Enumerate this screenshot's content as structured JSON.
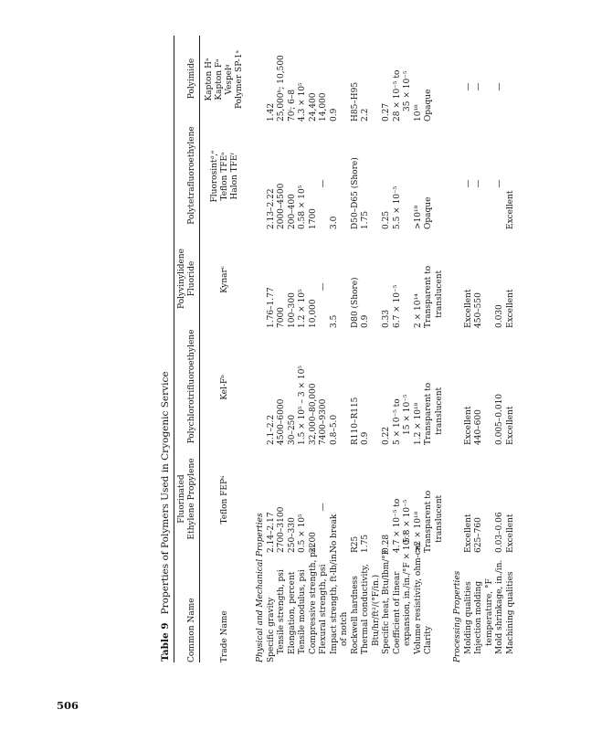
{
  "page": {
    "number": "506"
  },
  "table": {
    "title_label": "Table 9",
    "title": "Properties of Polymers Used in Cryogenic Service",
    "row_header": "Common Name",
    "trade_row_label": "Trade Name",
    "columns": [
      {
        "header_lines": [
          "Fluorinated",
          "Ethylene Propylene"
        ],
        "trade_lines": [
          "Teflon FEPᵃ"
        ]
      },
      {
        "header_lines": [
          "Polychlorotrifluoroethylene"
        ],
        "trade_lines": [
          "Kel-Fᵇ"
        ]
      },
      {
        "header_lines": [
          "Polyvinylidene",
          "Fluoride"
        ],
        "trade_lines": [
          "Kynarᶜ"
        ]
      },
      {
        "header_lines": [
          "Polytetrafluoroethylene"
        ],
        "trade_lines": [
          "Fluorosintᵈ,ᵉ",
          "Teflon TFEᵃ",
          "Halon TFEᶠ"
        ]
      },
      {
        "header_lines": [
          "Polyimide"
        ],
        "trade_lines": [
          "Kapton Hᵃ",
          "Kapton Fᵃ",
          "Vespelᵍ",
          "Polymer SP-1ᵃ"
        ]
      }
    ],
    "sections": [
      {
        "heading": "Physical and Mechanical Properties",
        "rows": [
          {
            "label_lines": [
              "Specific gravity"
            ],
            "indent": 0,
            "values": [
              "2.14–2.17",
              "2.1–2.2",
              "1.76–1.77",
              "2.13–2.22",
              "1.42"
            ]
          },
          {
            "label_lines": [
              "Tensile strength, psi"
            ],
            "indent": 1,
            "values": [
              "2700–3100",
              "4500–6000",
              "7000",
              "2000–4500",
              "25,000ʰ; 10,500"
            ]
          },
          {
            "label_lines": [
              "Elongation, percent"
            ],
            "indent": 1,
            "values": [
              "250–330",
              "30–250",
              "100–300",
              "200–400",
              "70ⁱ; 6–8"
            ]
          },
          {
            "label_lines": [
              "Tensile modulus, psi"
            ],
            "indent": 1,
            "values": [
              "0.5 × 10⁵",
              "1.5 × 10⁵ – 3 × 10⁵",
              "1.2 × 10⁵",
              "0.58 × 10⁵",
              "4.3 × 10⁵"
            ]
          },
          {
            "label_lines": [
              "Compressive strength, psi"
            ],
            "indent": 1,
            "values": [
              "2200",
              "32,000–80,000",
              "10,000",
              "1700",
              "24,400"
            ]
          },
          {
            "label_lines": [
              "Flexural strength, psi"
            ],
            "indent": 1,
            "values": [
              "—",
              "7400–9300",
              "—",
              "—",
              "14,000"
            ]
          },
          {
            "label_lines": [
              "Impact strength, ft-lb/in.",
              "of notch"
            ],
            "indent": 1,
            "values": [
              "No break",
              "0.8–5.0",
              "3.5",
              "3.0",
              "0.9"
            ]
          },
          {
            "label_lines": [
              "Rockwell hardness"
            ],
            "indent": 1,
            "values": [
              "R25",
              "R110–R115",
              "D80 (Shore)",
              "D50–D65 (Shore)",
              "H85–H95"
            ]
          },
          {
            "label_lines": [
              "Thermal conductivity,",
              "Btu/hr/ft²/(°F/in.)"
            ],
            "indent": 1,
            "values": [
              "1.75",
              "0.9",
              "0.9",
              "1.75",
              "2.2"
            ]
          },
          {
            "label_lines": [
              "Specific heat, Btu/lbm/°F"
            ],
            "indent": 1,
            "values": [
              "0.28",
              "0.22",
              "0.33",
              "0.25",
              "0.27"
            ]
          },
          {
            "label_lines": [
              "Coefficient of linear",
              "expansion, in./in./°F × 10⁻⁵"
            ],
            "indent": 1,
            "values": [
              [
                "4.7 × 10⁻⁵ to",
                "5.8 × 10⁻⁵"
              ],
              [
                "5 × 10⁻⁵ to",
                "15 × 10⁻⁵"
              ],
              "6.7 × 10⁻⁵",
              "5.5 × 10⁻⁵",
              [
                "28 × 10⁻⁵ to",
                "35 × 10⁻⁵"
              ]
            ]
          },
          {
            "label_lines": [
              "Volume resistivity, ohm-cm"
            ],
            "indent": 1,
            "values": [
              ">2 × 10¹⁸",
              "1.2 × 10¹⁸",
              "2 × 10¹⁴",
              ">10¹⁸",
              "10¹⁸"
            ]
          },
          {
            "label_lines": [
              "Clarity"
            ],
            "indent": 1,
            "values": [
              [
                "Transparent to",
                "translucent"
              ],
              [
                "Transparent to",
                "translucent"
              ],
              [
                "Transparent to",
                "translucent"
              ],
              "Opaque",
              "Opaque"
            ]
          }
        ]
      },
      {
        "heading": "Processing Properties",
        "rows": [
          {
            "label_lines": [
              "Molding qualities"
            ],
            "indent": 1,
            "values": [
              "Excellent",
              "Excellent",
              "Excellent",
              "—",
              "—"
            ]
          },
          {
            "label_lines": [
              "Injection molding",
              "temperature, °F"
            ],
            "indent": 1,
            "values": [
              "625–760",
              "440–600",
              "450–550",
              "—",
              "—"
            ]
          },
          {
            "label_lines": [
              "Mold shrinkage, in./in."
            ],
            "indent": 1,
            "values": [
              "0.03–0.06",
              "0.005–0.010",
              "0.030",
              "—",
              "—"
            ]
          },
          {
            "label_lines": [
              "Machining qualities"
            ],
            "indent": 1,
            "values": [
              "Excellent",
              "Excellent",
              "Excellent",
              "Excellent",
              ""
            ]
          }
        ]
      }
    ]
  }
}
